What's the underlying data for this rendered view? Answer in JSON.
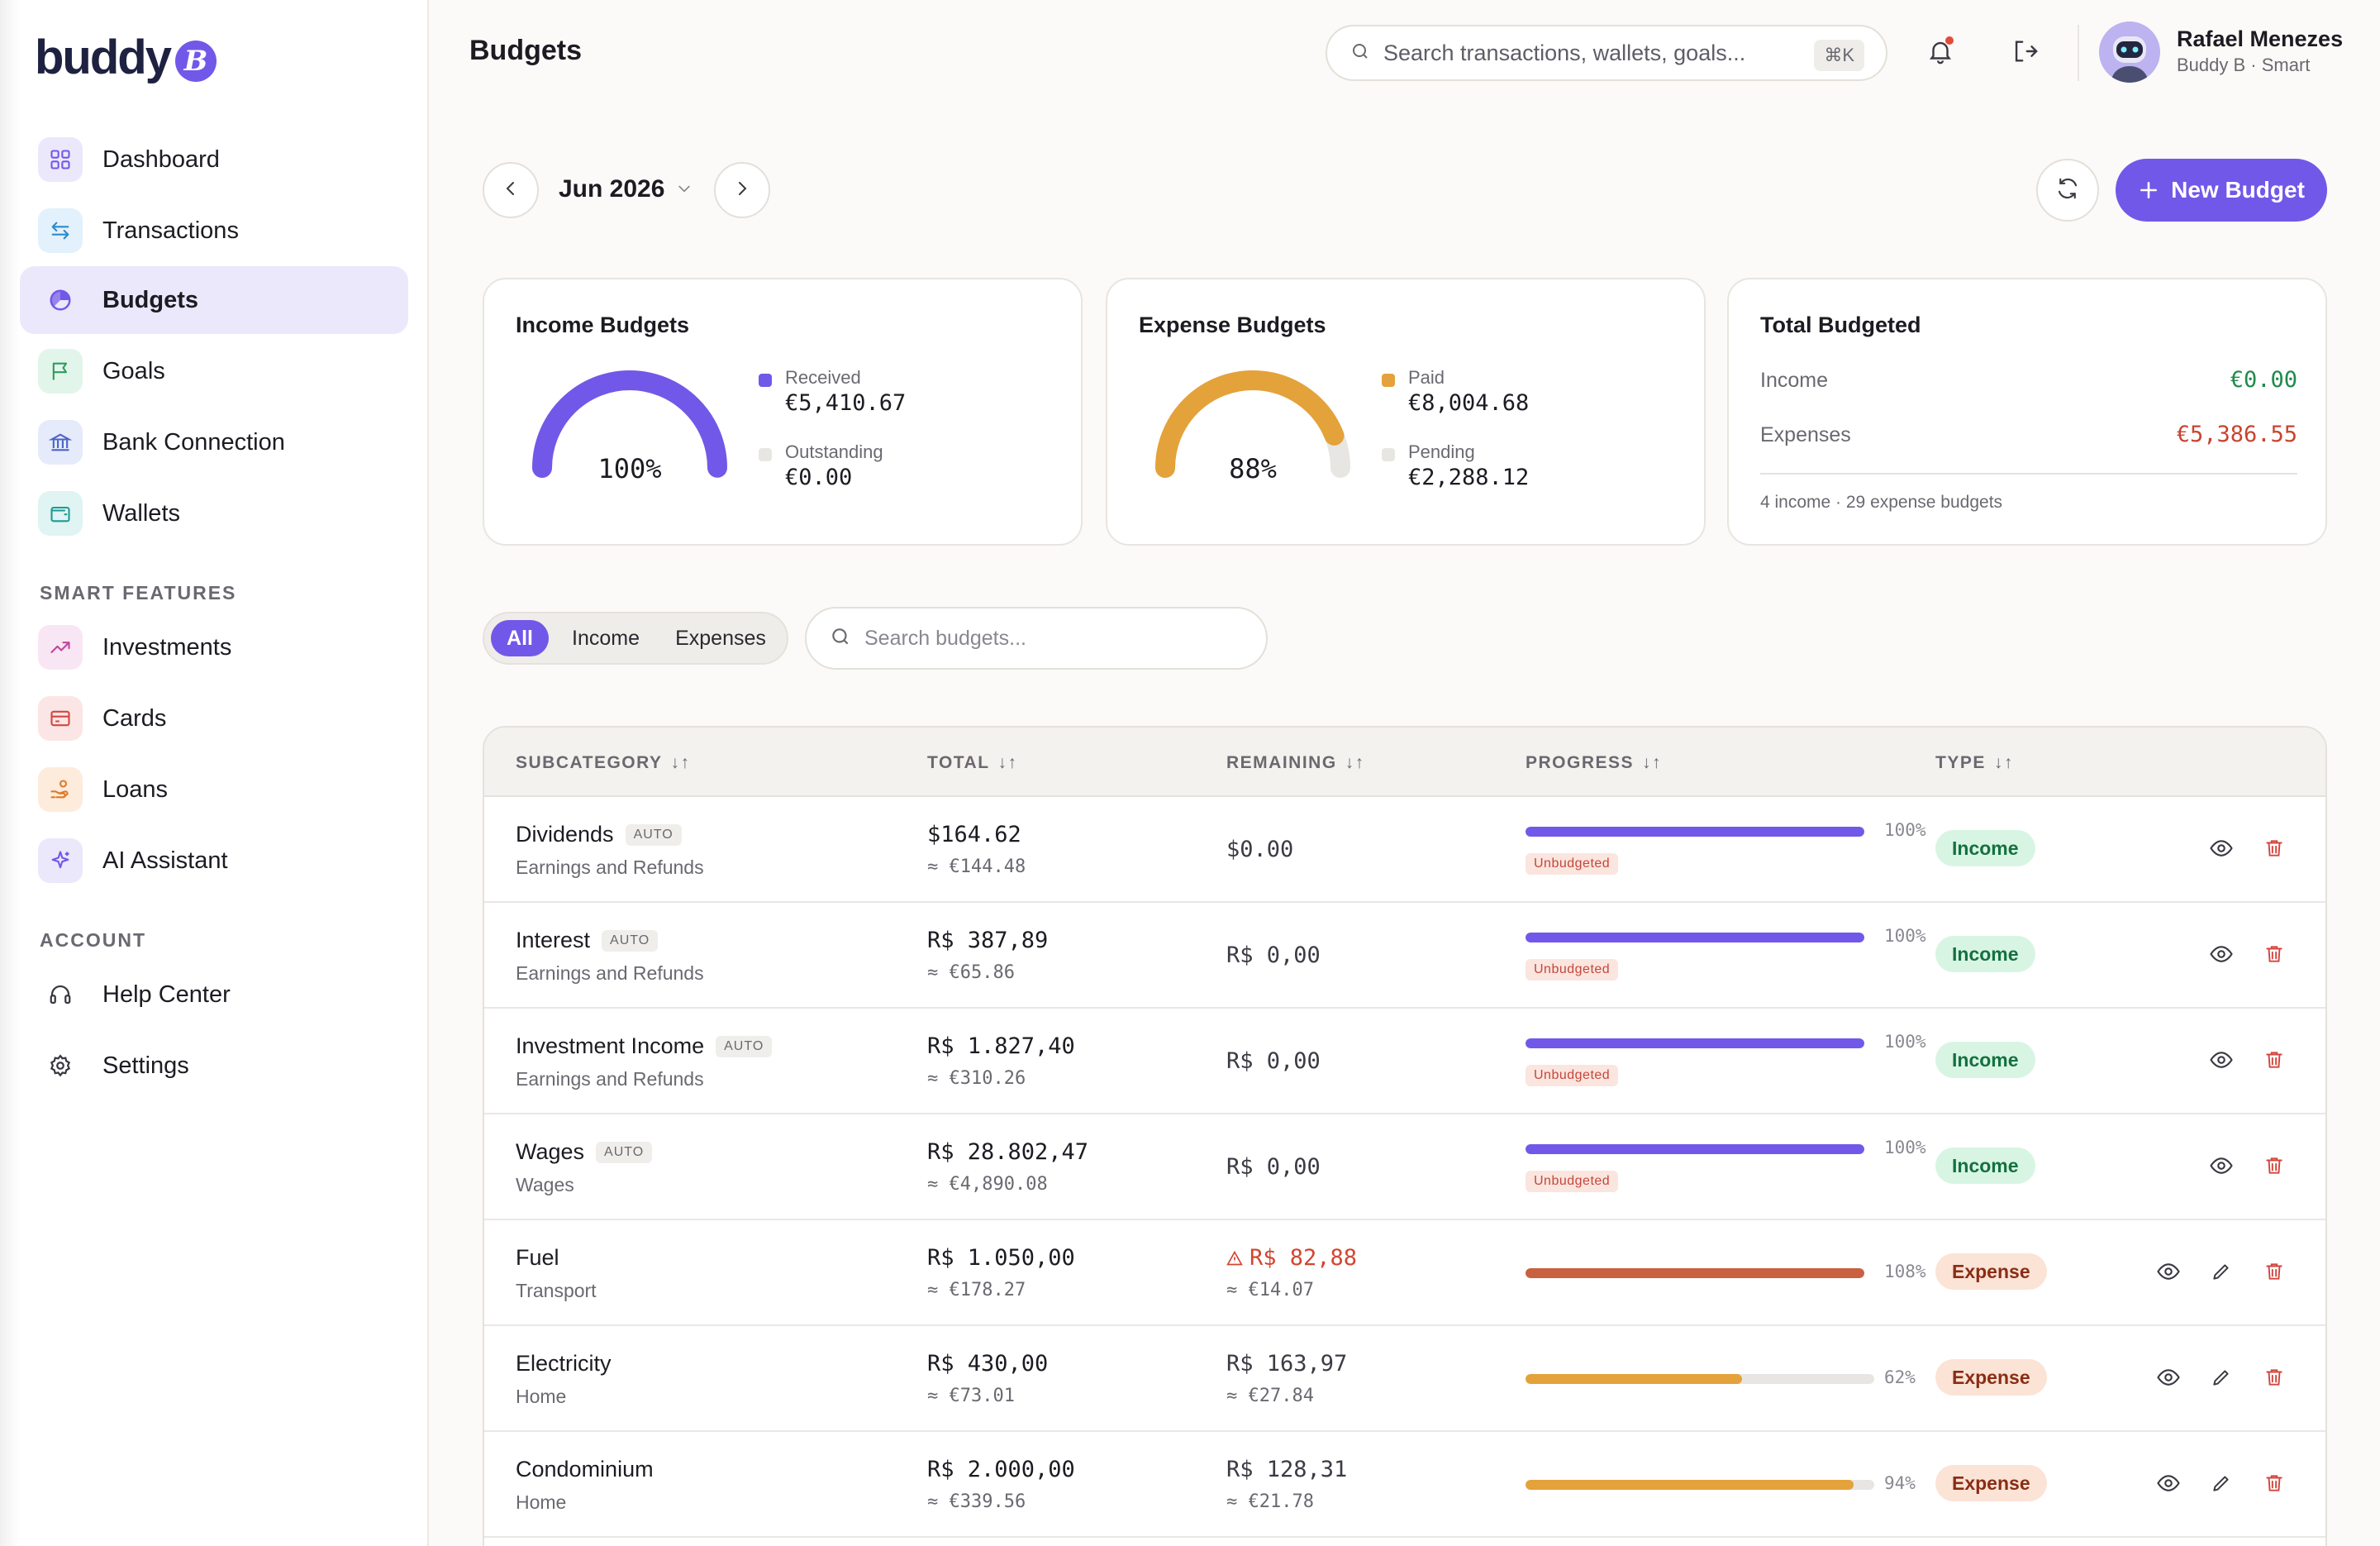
{
  "app": {
    "logo_text": "buddy",
    "logo_badge": "B"
  },
  "sidebar": {
    "items": [
      {
        "label": "Dashboard"
      },
      {
        "label": "Transactions"
      },
      {
        "label": "Budgets"
      },
      {
        "label": "Goals"
      },
      {
        "label": "Bank Connection"
      },
      {
        "label": "Wallets"
      }
    ],
    "smart_label": "SMART FEATURES",
    "smart_items": [
      {
        "label": "Investments"
      },
      {
        "label": "Cards"
      },
      {
        "label": "Loans"
      },
      {
        "label": "AI Assistant"
      }
    ],
    "account_label": "ACCOUNT",
    "account_items": [
      {
        "label": "Help Center"
      },
      {
        "label": "Settings"
      }
    ]
  },
  "header": {
    "title": "Budgets",
    "search_placeholder": "Search transactions, wallets, goals...",
    "shortcut": "⌘K",
    "user_name": "Rafael Menezes",
    "user_sub": "Buddy B · Smart"
  },
  "toolbar": {
    "month": "Jun 2026",
    "new_budget": "New Budget"
  },
  "cards": {
    "income": {
      "title": "Income Budgets",
      "percent": "100%",
      "fill": 1.0,
      "l1_label": "Received",
      "l1_value": "€5,410.67",
      "l2_label": "Outstanding",
      "l2_value": "€0.00"
    },
    "expense": {
      "title": "Expense Budgets",
      "percent": "88%",
      "fill": 0.88,
      "l1_label": "Paid",
      "l1_value": "€8,004.68",
      "l2_label": "Pending",
      "l2_value": "€2,288.12"
    },
    "total": {
      "title": "Total Budgeted",
      "income_label": "Income",
      "income_value": "€0.00",
      "expenses_label": "Expenses",
      "expenses_value": "€5,386.55",
      "footnote": "4 income · 29 expense budgets"
    }
  },
  "filters": {
    "all": "All",
    "income": "Income",
    "expenses": "Expenses",
    "search_placeholder": "Search budgets..."
  },
  "table": {
    "headers": {
      "subcategory": "SUBCATEGORY",
      "total": "TOTAL",
      "remaining": "REMAINING",
      "progress": "PROGRESS",
      "type": "TYPE",
      "sort": "↓↑"
    },
    "auto_label": "AUTO",
    "unbudgeted_label": "Unbudgeted",
    "rows": [
      {
        "name": "Dividends",
        "category": "Earnings and Refunds",
        "total": "$164.62",
        "total_eq": "≈ €144.48",
        "remaining": "$0.00",
        "remaining_eq": "",
        "pct": "100%",
        "type": "Income"
      },
      {
        "name": "Interest",
        "category": "Earnings and Refunds",
        "total": "R$ 387,89",
        "total_eq": "≈ €65.86",
        "remaining": "R$ 0,00",
        "remaining_eq": "",
        "pct": "100%",
        "type": "Income"
      },
      {
        "name": "Investment Income",
        "category": "Earnings and Refunds",
        "total": "R$ 1.827,40",
        "total_eq": "≈ €310.26",
        "remaining": "R$ 0,00",
        "remaining_eq": "",
        "pct": "100%",
        "type": "Income"
      },
      {
        "name": "Wages",
        "category": "Wages",
        "total": "R$ 28.802,47",
        "total_eq": "≈ €4,890.08",
        "remaining": "R$ 0,00",
        "remaining_eq": "",
        "pct": "100%",
        "type": "Income"
      },
      {
        "name": "Fuel",
        "category": "Transport",
        "total": "R$ 1.050,00",
        "total_eq": "≈ €178.27",
        "remaining": "R$ 82,88",
        "remaining_eq": "≈ €14.07",
        "pct": "108%",
        "type": "Expense"
      },
      {
        "name": "Electricity",
        "category": "Home",
        "total": "R$ 430,00",
        "total_eq": "≈ €73.01",
        "remaining": "R$ 163,97",
        "remaining_eq": "≈ €27.84",
        "pct": "62%",
        "type": "Expense"
      },
      {
        "name": "Condominium",
        "category": "Home",
        "total": "R$ 2.000,00",
        "total_eq": "≈ €339.56",
        "remaining": "R$ 128,31",
        "remaining_eq": "≈ €21.78",
        "pct": "94%",
        "type": "Expense"
      }
    ]
  },
  "colors": {
    "accent": "#7258e8",
    "expense_gauge": "#e4a23a",
    "over_budget": "#c9603f",
    "positive": "#1f8a4c",
    "negative": "#c9442f"
  }
}
